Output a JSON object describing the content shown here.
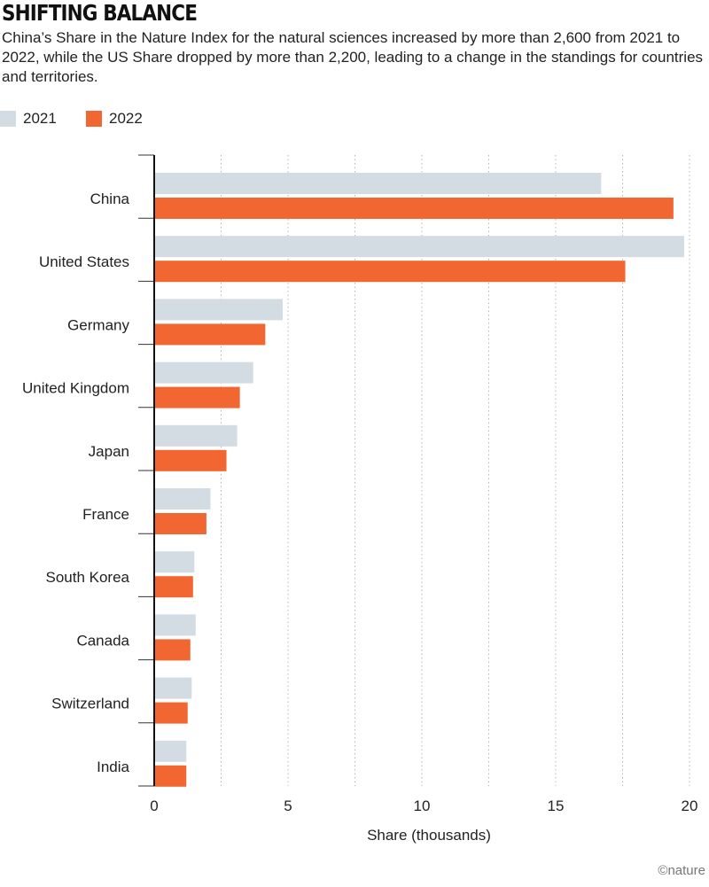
{
  "title": "SHIFTING BALANCE",
  "subtitle": "China’s Share in the Nature Index for the natural sciences increased by more than 2,600 from 2021 to 2022, while the US Share dropped by more than 2,200, leading to a change in the standings for countries and territories.",
  "legend": [
    {
      "label": "2021",
      "color": "#d3dbe3"
    },
    {
      "label": "2022",
      "color": "#f26631"
    }
  ],
  "credit": "©nature",
  "chart_data": {
    "type": "bar",
    "orientation": "horizontal",
    "categories": [
      "China",
      "United States",
      "Germany",
      "United Kingdom",
      "Japan",
      "France",
      "South Korea",
      "Canada",
      "Switzerland",
      "India"
    ],
    "series": [
      {
        "name": "2021",
        "color": "#d3dbe3",
        "values": [
          16.7,
          19.8,
          4.8,
          3.7,
          3.1,
          2.1,
          1.5,
          1.55,
          1.4,
          1.2
        ]
      },
      {
        "name": "2022",
        "color": "#f26631",
        "values": [
          19.4,
          17.6,
          4.15,
          3.2,
          2.7,
          1.95,
          1.45,
          1.35,
          1.25,
          1.2
        ]
      }
    ],
    "xlabel": "Share (thousands)",
    "ylabel": "",
    "xlim": [
      0,
      20
    ],
    "xticks": [
      "0",
      "5",
      "10",
      "15",
      "20"
    ],
    "grid": true,
    "legend_position": "top-left"
  }
}
